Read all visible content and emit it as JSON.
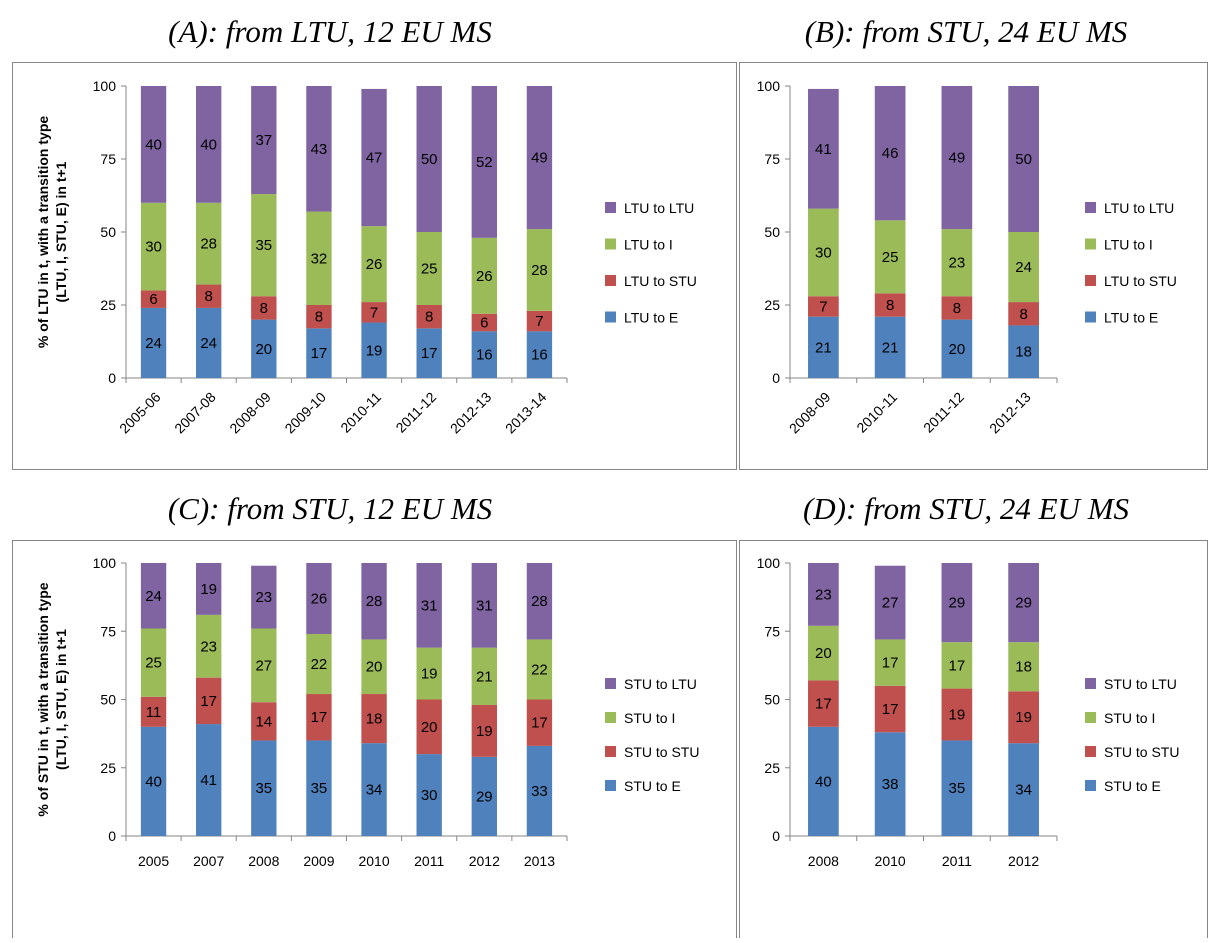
{
  "chart_data": [
    {
      "type": "bar",
      "stacked": true,
      "title": "(A): from LTU, 12 EU MS",
      "ylabel_lines": [
        "% of LTU in t, with a transition type",
        "(LTU, I, STU, E) in t+1"
      ],
      "ylim": [
        0,
        100
      ],
      "yticks": [
        "0",
        "25",
        "50",
        "75",
        "100"
      ],
      "categories": [
        "2005-06",
        "2007-08",
        "2008-09",
        "2009-10",
        "2010-11",
        "2011-12",
        "2012-13",
        "2013-14"
      ],
      "xlabel_rotated": true,
      "series": [
        {
          "name": "LTU to E",
          "color": "#4f81bd",
          "values": [
            24,
            24,
            20,
            17,
            19,
            17,
            16,
            16
          ]
        },
        {
          "name": "LTU to STU",
          "color": "#c0504d",
          "values": [
            6,
            8,
            8,
            8,
            7,
            8,
            6,
            7
          ]
        },
        {
          "name": "LTU to I",
          "color": "#9bbb59",
          "values": [
            30,
            28,
            35,
            32,
            26,
            25,
            26,
            28
          ]
        },
        {
          "name": "LTU to LTU",
          "color": "#8064a2",
          "values": [
            40,
            40,
            37,
            43,
            47,
            50,
            52,
            49
          ]
        }
      ],
      "legend_order": [
        "LTU to LTU",
        "LTU to I",
        "LTU to STU",
        "LTU to E"
      ],
      "legend": "right",
      "grid": false
    },
    {
      "type": "bar",
      "stacked": true,
      "title": "(B): from STU, 24 EU MS",
      "ylabel_lines": [],
      "ylim": [
        0,
        100
      ],
      "yticks": [
        "0",
        "25",
        "50",
        "75",
        "100"
      ],
      "categories": [
        "2008-09",
        "2010-11",
        "2011-12",
        "2012-13"
      ],
      "xlabel_rotated": true,
      "series": [
        {
          "name": "LTU to E",
          "color": "#4f81bd",
          "values": [
            21,
            21,
            20,
            18
          ]
        },
        {
          "name": "LTU to STU",
          "color": "#c0504d",
          "values": [
            7,
            8,
            8,
            8
          ]
        },
        {
          "name": "LTU to I",
          "color": "#9bbb59",
          "values": [
            30,
            25,
            23,
            24
          ]
        },
        {
          "name": "LTU to LTU",
          "color": "#8064a2",
          "values": [
            41,
            46,
            49,
            50
          ]
        }
      ],
      "legend_order": [
        "LTU to LTU",
        "LTU to I",
        "LTU to STU",
        "LTU to E"
      ],
      "legend": "right",
      "grid": false
    },
    {
      "type": "bar",
      "stacked": true,
      "title": "(C): from STU, 12 EU MS",
      "ylabel_lines": [
        "% of STU in t, with a transition type",
        "(LTU, I, STU, E) in t+1"
      ],
      "ylim": [
        0,
        100
      ],
      "yticks": [
        "0",
        "25",
        "50",
        "75",
        "100"
      ],
      "categories": [
        "2005",
        "2007",
        "2008",
        "2009",
        "2010",
        "2011",
        "2012",
        "2013"
      ],
      "xlabel_rotated": false,
      "series": [
        {
          "name": "STU to E",
          "color": "#4f81bd",
          "values": [
            40,
            41,
            35,
            35,
            34,
            30,
            29,
            33
          ]
        },
        {
          "name": "STU to STU",
          "color": "#c0504d",
          "values": [
            11,
            17,
            14,
            17,
            18,
            20,
            19,
            17
          ]
        },
        {
          "name": "STU to I",
          "color": "#9bbb59",
          "values": [
            25,
            23,
            27,
            22,
            20,
            19,
            21,
            22
          ]
        },
        {
          "name": "STU to LTU",
          "color": "#8064a2",
          "values": [
            24,
            19,
            23,
            26,
            28,
            31,
            31,
            28
          ]
        }
      ],
      "legend_order": [
        "STU to LTU",
        "STU to I",
        "STU to STU",
        "STU to E"
      ],
      "legend": "right",
      "grid": false
    },
    {
      "type": "bar",
      "stacked": true,
      "title": "(D): from STU, 24 EU MS",
      "ylabel_lines": [],
      "ylim": [
        0,
        100
      ],
      "yticks": [
        "0",
        "25",
        "50",
        "75",
        "100"
      ],
      "categories": [
        "2008",
        "2010",
        "2011",
        "2012"
      ],
      "xlabel_rotated": false,
      "series": [
        {
          "name": "STU to E",
          "color": "#4f81bd",
          "values": [
            40,
            38,
            35,
            34
          ]
        },
        {
          "name": "STU to STU",
          "color": "#c0504d",
          "values": [
            17,
            17,
            19,
            19
          ]
        },
        {
          "name": "STU to I",
          "color": "#9bbb59",
          "values": [
            20,
            17,
            17,
            18
          ]
        },
        {
          "name": "STU to LTU",
          "color": "#8064a2",
          "values": [
            23,
            27,
            29,
            29
          ]
        }
      ],
      "legend_order": [
        "STU to LTU",
        "STU to I",
        "STU to STU",
        "STU to E"
      ],
      "legend": "right",
      "grid": false
    }
  ]
}
